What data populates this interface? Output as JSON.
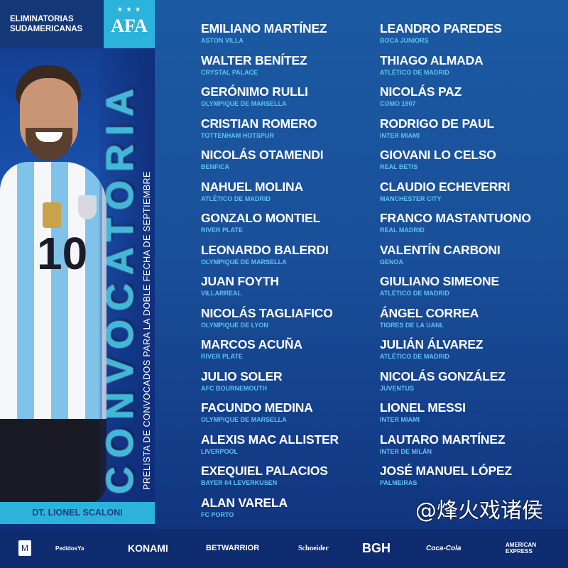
{
  "header": {
    "title": "ELIMINATORIAS SUDAMERICANAS",
    "logo_text": "AFA",
    "logo_stars": "★ ★ ★"
  },
  "left": {
    "big_title": "CONVOCATORIA",
    "subtitle": "PRELISTA DE CONVOCADOS PARA LA DOBLE FECHA DE SEPTIEMBRE",
    "jersey_number": "10",
    "coach": "DT. LIONEL SCALONI"
  },
  "columns": [
    [
      {
        "name": "EMILIANO MARTÍNEZ",
        "club": "ASTON VILLA"
      },
      {
        "name": "WALTER BENÍTEZ",
        "club": "CRYSTAL PALACE"
      },
      {
        "name": "GERÓNIMO RULLI",
        "club": "OLYMPIQUE DE MARSELLA"
      },
      {
        "name": "CRISTIAN ROMERO",
        "club": "TOTTENHAM HOTSPUR"
      },
      {
        "name": "NICOLÁS OTAMENDI",
        "club": "BENFICA"
      },
      {
        "name": "NAHUEL MOLINA",
        "club": "ATLÉTICO DE MADRID"
      },
      {
        "name": "GONZALO MONTIEL",
        "club": "RIVER PLATE"
      },
      {
        "name": "LEONARDO BALERDI",
        "club": "OLYMPIQUE DE MARSELLA"
      },
      {
        "name": "JUAN FOYTH",
        "club": "VILLARREAL"
      },
      {
        "name": "NICOLÁS TAGLIAFICO",
        "club": "OLYMPIQUE DE LYON"
      },
      {
        "name": "MARCOS ACUÑA",
        "club": "RIVER PLATE"
      },
      {
        "name": "JULIO SOLER",
        "club": "AFC BOURNEMOUTH"
      },
      {
        "name": "FACUNDO MEDINA",
        "club": "OLYMPIQUE DE MARSELLA"
      },
      {
        "name": "ALEXIS MAC ALLISTER",
        "club": "LIVERPOOL"
      },
      {
        "name": "EXEQUIEL PALACIOS",
        "club": "BAYER 04 LEVERKUSEN"
      },
      {
        "name": "ALAN VARELA",
        "club": "FC PORTO"
      }
    ],
    [
      {
        "name": "LEANDRO PAREDES",
        "club": "BOCA JUNIORS"
      },
      {
        "name": "THIAGO ALMADA",
        "club": "ATLÉTICO DE MADRID"
      },
      {
        "name": "NICOLÁS PAZ",
        "club": "COMO 1907"
      },
      {
        "name": "RODRIGO DE PAUL",
        "club": "INTER MIAMI"
      },
      {
        "name": "GIOVANI LO CELSO",
        "club": "REAL BETIS"
      },
      {
        "name": "CLAUDIO ECHEVERRI",
        "club": "MANCHESTER CITY"
      },
      {
        "name": "FRANCO MASTANTUONO",
        "club": "REAL MADRID"
      },
      {
        "name": "VALENTÍN CARBONI",
        "club": "GENOA"
      },
      {
        "name": "GIULIANO SIMEONE",
        "club": "ATLÉTICO DE MADRID"
      },
      {
        "name": "ÁNGEL CORREA",
        "club": "TIGRES DE LA UANL"
      },
      {
        "name": "JULIÁN ÁLVAREZ",
        "club": "ATLÉTICO DE MADRID"
      },
      {
        "name": "NICOLÁS GONZÁLEZ",
        "club": "JUVENTUS"
      },
      {
        "name": "LIONEL MESSI",
        "club": "INTER MIAMI"
      },
      {
        "name": "LAUTARO MARTÍNEZ",
        "club": "INTER DE MILÁN"
      },
      {
        "name": "JOSÉ MANUEL LÓPEZ",
        "club": "PALMEIRAS"
      }
    ]
  ],
  "sponsors": [
    {
      "name": "McDonald's",
      "text": "M"
    },
    {
      "name": "PedidosYa",
      "text": "PedidosYa"
    },
    {
      "name": "KONAMI",
      "text": "KONAMI"
    },
    {
      "name": "BETWARRIOR",
      "text": "BETWARRIOR"
    },
    {
      "name": "Schneider",
      "text": "Schneider"
    },
    {
      "name": "BGH",
      "text": "BGH"
    },
    {
      "name": "Coca-Cola",
      "text": "Coca-Cola"
    },
    {
      "name": "American Express",
      "text": "AMERICAN EXPRESS"
    }
  ],
  "watermark": "@烽火戏诸侯",
  "colors": {
    "accent_cyan": "#2cb3dc",
    "club_text": "#5dc3ee",
    "background": "#1a4f99",
    "footer": "#102c70"
  }
}
